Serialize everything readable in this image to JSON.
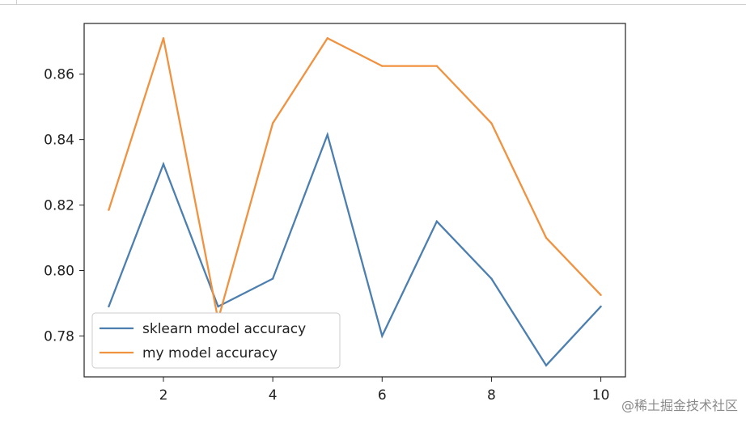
{
  "chart_data": {
    "type": "line",
    "title": "",
    "xlabel": "",
    "ylabel": "",
    "x": [
      1,
      2,
      3,
      4,
      5,
      6,
      7,
      8,
      9,
      10
    ],
    "xlim": [
      0.55,
      10.45
    ],
    "ylim": [
      0.7675,
      0.8755
    ],
    "xticks": [
      2,
      4,
      6,
      8,
      10
    ],
    "yticks": [
      0.78,
      0.8,
      0.82,
      0.84,
      0.86
    ],
    "ytick_labels": [
      "0.78",
      "0.80",
      "0.82",
      "0.84",
      "0.86"
    ],
    "grid": false,
    "legend_position": "lower-left",
    "series": [
      {
        "name": "sklearn model accuracy",
        "color": "#4c7fb0",
        "values": [
          0.789,
          0.8325,
          0.789,
          0.7975,
          0.8415,
          0.78,
          0.815,
          0.7975,
          0.771,
          0.789
        ]
      },
      {
        "name": "my model accuracy",
        "color": "#f0923f",
        "values": [
          0.8185,
          0.871,
          0.785,
          0.845,
          0.871,
          0.8625,
          0.8625,
          0.845,
          0.81,
          0.7925
        ]
      }
    ]
  },
  "watermark": "@稀土掘金技术社区"
}
